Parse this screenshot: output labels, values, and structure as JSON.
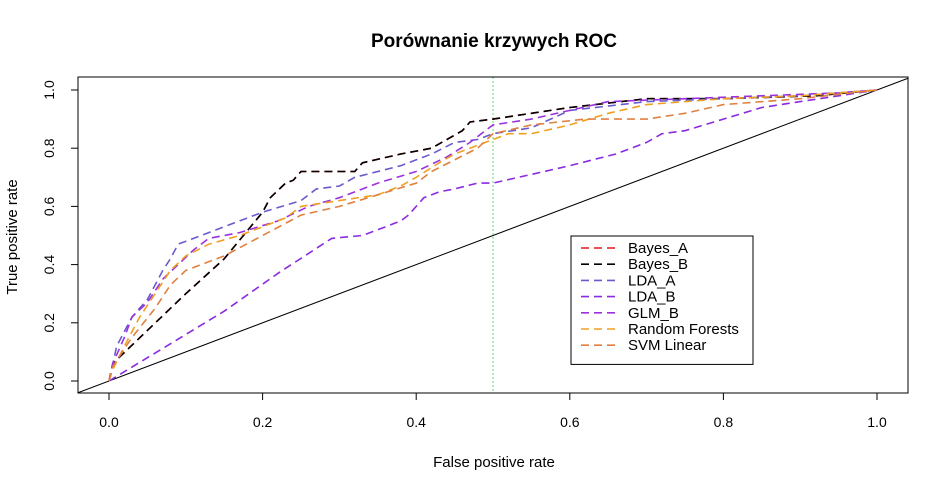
{
  "chart_data": {
    "type": "line",
    "title": "Porównanie krzywych ROC",
    "xlabel": "False positive rate",
    "ylabel": "True positive rate",
    "xlim": [
      0,
      1
    ],
    "ylim": [
      0,
      1
    ],
    "x_ticks": [
      "0.0",
      "0.2",
      "0.4",
      "0.6",
      "0.8",
      "1.0"
    ],
    "y_ticks": [
      "0.0",
      "0.2",
      "0.4",
      "0.6",
      "0.8",
      "1.0"
    ],
    "grid": false,
    "legend_position": "center-right",
    "reference_lines": [
      {
        "kind": "diagonal",
        "from": [
          -0.04,
          -0.04
        ],
        "to": [
          1.04,
          1.04
        ],
        "color": "#000000"
      },
      {
        "kind": "vertical",
        "x": 0.5,
        "color": "#66dd66",
        "style": "dotted"
      }
    ],
    "series": [
      {
        "name": "Bayes_A",
        "color": "#e41a1c",
        "dash": "8,5",
        "points": [
          [
            0,
            0
          ],
          [
            0.005,
            0.06
          ],
          [
            0.1,
            0.3
          ],
          [
            0.15,
            0.42
          ],
          [
            0.2,
            0.58
          ],
          [
            0.21,
            0.63
          ],
          [
            0.23,
            0.68
          ],
          [
            0.24,
            0.69
          ],
          [
            0.25,
            0.72
          ],
          [
            0.32,
            0.72
          ],
          [
            0.33,
            0.75
          ],
          [
            0.38,
            0.78
          ],
          [
            0.42,
            0.8
          ],
          [
            0.44,
            0.83
          ],
          [
            0.46,
            0.86
          ],
          [
            0.47,
            0.89
          ],
          [
            0.5,
            0.9
          ],
          [
            0.55,
            0.92
          ],
          [
            0.6,
            0.94
          ],
          [
            0.7,
            0.97
          ],
          [
            0.8,
            0.97
          ],
          [
            0.92,
            0.98
          ],
          [
            1,
            1
          ]
        ]
      },
      {
        "name": "Bayes_B",
        "color": "#000000",
        "dash": "8,5",
        "points": [
          [
            0,
            0
          ],
          [
            0.005,
            0.06
          ],
          [
            0.1,
            0.3
          ],
          [
            0.15,
            0.42
          ],
          [
            0.2,
            0.58
          ],
          [
            0.21,
            0.63
          ],
          [
            0.23,
            0.68
          ],
          [
            0.24,
            0.69
          ],
          [
            0.25,
            0.72
          ],
          [
            0.32,
            0.72
          ],
          [
            0.33,
            0.75
          ],
          [
            0.38,
            0.78
          ],
          [
            0.42,
            0.8
          ],
          [
            0.44,
            0.83
          ],
          [
            0.46,
            0.86
          ],
          [
            0.47,
            0.89
          ],
          [
            0.5,
            0.9
          ],
          [
            0.55,
            0.92
          ],
          [
            0.6,
            0.94
          ],
          [
            0.7,
            0.97
          ],
          [
            0.8,
            0.97
          ],
          [
            0.92,
            0.98
          ],
          [
            1,
            1
          ]
        ]
      },
      {
        "name": "LDA_A",
        "color": "#6a5acd",
        "dash": "8,5",
        "points": [
          [
            0,
            0
          ],
          [
            0.01,
            0.12
          ],
          [
            0.02,
            0.17
          ],
          [
            0.03,
            0.22
          ],
          [
            0.05,
            0.28
          ],
          [
            0.06,
            0.33
          ],
          [
            0.07,
            0.38
          ],
          [
            0.08,
            0.42
          ],
          [
            0.09,
            0.47
          ],
          [
            0.12,
            0.5
          ],
          [
            0.17,
            0.55
          ],
          [
            0.2,
            0.58
          ],
          [
            0.25,
            0.62
          ],
          [
            0.27,
            0.66
          ],
          [
            0.3,
            0.67
          ],
          [
            0.32,
            0.7
          ],
          [
            0.38,
            0.74
          ],
          [
            0.42,
            0.78
          ],
          [
            0.45,
            0.82
          ],
          [
            0.48,
            0.83
          ],
          [
            0.5,
            0.85
          ],
          [
            0.55,
            0.87
          ],
          [
            0.6,
            0.93
          ],
          [
            0.7,
            0.96
          ],
          [
            0.8,
            0.97
          ],
          [
            0.9,
            0.98
          ],
          [
            1,
            1
          ]
        ]
      },
      {
        "name": "LDA_B",
        "color": "#8a2be2",
        "dash": "8,5",
        "points": [
          [
            0,
            0
          ],
          [
            0.05,
            0.08
          ],
          [
            0.15,
            0.24
          ],
          [
            0.22,
            0.37
          ],
          [
            0.29,
            0.49
          ],
          [
            0.33,
            0.5
          ],
          [
            0.36,
            0.53
          ],
          [
            0.38,
            0.55
          ],
          [
            0.39,
            0.57
          ],
          [
            0.4,
            0.6
          ],
          [
            0.41,
            0.63
          ],
          [
            0.43,
            0.65
          ],
          [
            0.45,
            0.66
          ],
          [
            0.48,
            0.68
          ],
          [
            0.5,
            0.68
          ],
          [
            0.55,
            0.71
          ],
          [
            0.6,
            0.74
          ],
          [
            0.63,
            0.76
          ],
          [
            0.66,
            0.78
          ],
          [
            0.7,
            0.82
          ],
          [
            0.72,
            0.85
          ],
          [
            0.75,
            0.86
          ],
          [
            0.8,
            0.9
          ],
          [
            0.85,
            0.94
          ],
          [
            0.9,
            0.96
          ],
          [
            1,
            1
          ]
        ]
      },
      {
        "name": "GLM_B",
        "color": "#9a32e0",
        "dash": "8,5",
        "points": [
          [
            0,
            0
          ],
          [
            0.005,
            0.06
          ],
          [
            0.02,
            0.15
          ],
          [
            0.03,
            0.22
          ],
          [
            0.05,
            0.27
          ],
          [
            0.07,
            0.35
          ],
          [
            0.09,
            0.4
          ],
          [
            0.11,
            0.45
          ],
          [
            0.13,
            0.49
          ],
          [
            0.17,
            0.51
          ],
          [
            0.22,
            0.55
          ],
          [
            0.26,
            0.6
          ],
          [
            0.3,
            0.63
          ],
          [
            0.35,
            0.68
          ],
          [
            0.4,
            0.72
          ],
          [
            0.44,
            0.77
          ],
          [
            0.47,
            0.82
          ],
          [
            0.5,
            0.88
          ],
          [
            0.55,
            0.9
          ],
          [
            0.6,
            0.93
          ],
          [
            0.65,
            0.96
          ],
          [
            0.75,
            0.97
          ],
          [
            0.85,
            0.98
          ],
          [
            0.95,
            0.99
          ],
          [
            1,
            1
          ]
        ]
      },
      {
        "name": "Random Forests",
        "color": "#f0a020",
        "dash": "8,5",
        "points": [
          [
            0,
            0
          ],
          [
            0.005,
            0.04
          ],
          [
            0.02,
            0.12
          ],
          [
            0.04,
            0.22
          ],
          [
            0.06,
            0.3
          ],
          [
            0.08,
            0.38
          ],
          [
            0.1,
            0.43
          ],
          [
            0.13,
            0.47
          ],
          [
            0.17,
            0.5
          ],
          [
            0.2,
            0.53
          ],
          [
            0.23,
            0.56
          ],
          [
            0.25,
            0.6
          ],
          [
            0.3,
            0.62
          ],
          [
            0.35,
            0.64
          ],
          [
            0.38,
            0.67
          ],
          [
            0.4,
            0.7
          ],
          [
            0.43,
            0.75
          ],
          [
            0.45,
            0.78
          ],
          [
            0.5,
            0.83
          ],
          [
            0.52,
            0.85
          ],
          [
            0.55,
            0.85
          ],
          [
            0.6,
            0.88
          ],
          [
            0.65,
            0.92
          ],
          [
            0.7,
            0.95
          ],
          [
            0.8,
            0.97
          ],
          [
            0.9,
            0.98
          ],
          [
            1,
            1
          ]
        ]
      },
      {
        "name": "SVM Linear",
        "color": "#e08040",
        "dash": "8,5",
        "points": [
          [
            0,
            0
          ],
          [
            0.005,
            0.05
          ],
          [
            0.03,
            0.15
          ],
          [
            0.06,
            0.25
          ],
          [
            0.08,
            0.33
          ],
          [
            0.1,
            0.38
          ],
          [
            0.15,
            0.43
          ],
          [
            0.2,
            0.5
          ],
          [
            0.25,
            0.57
          ],
          [
            0.3,
            0.6
          ],
          [
            0.35,
            0.64
          ],
          [
            0.4,
            0.68
          ],
          [
            0.42,
            0.72
          ],
          [
            0.45,
            0.76
          ],
          [
            0.48,
            0.8
          ],
          [
            0.5,
            0.85
          ],
          [
            0.55,
            0.88
          ],
          [
            0.62,
            0.9
          ],
          [
            0.7,
            0.9
          ],
          [
            0.75,
            0.92
          ],
          [
            0.8,
            0.95
          ],
          [
            0.9,
            0.97
          ],
          [
            1,
            1
          ]
        ]
      }
    ]
  }
}
